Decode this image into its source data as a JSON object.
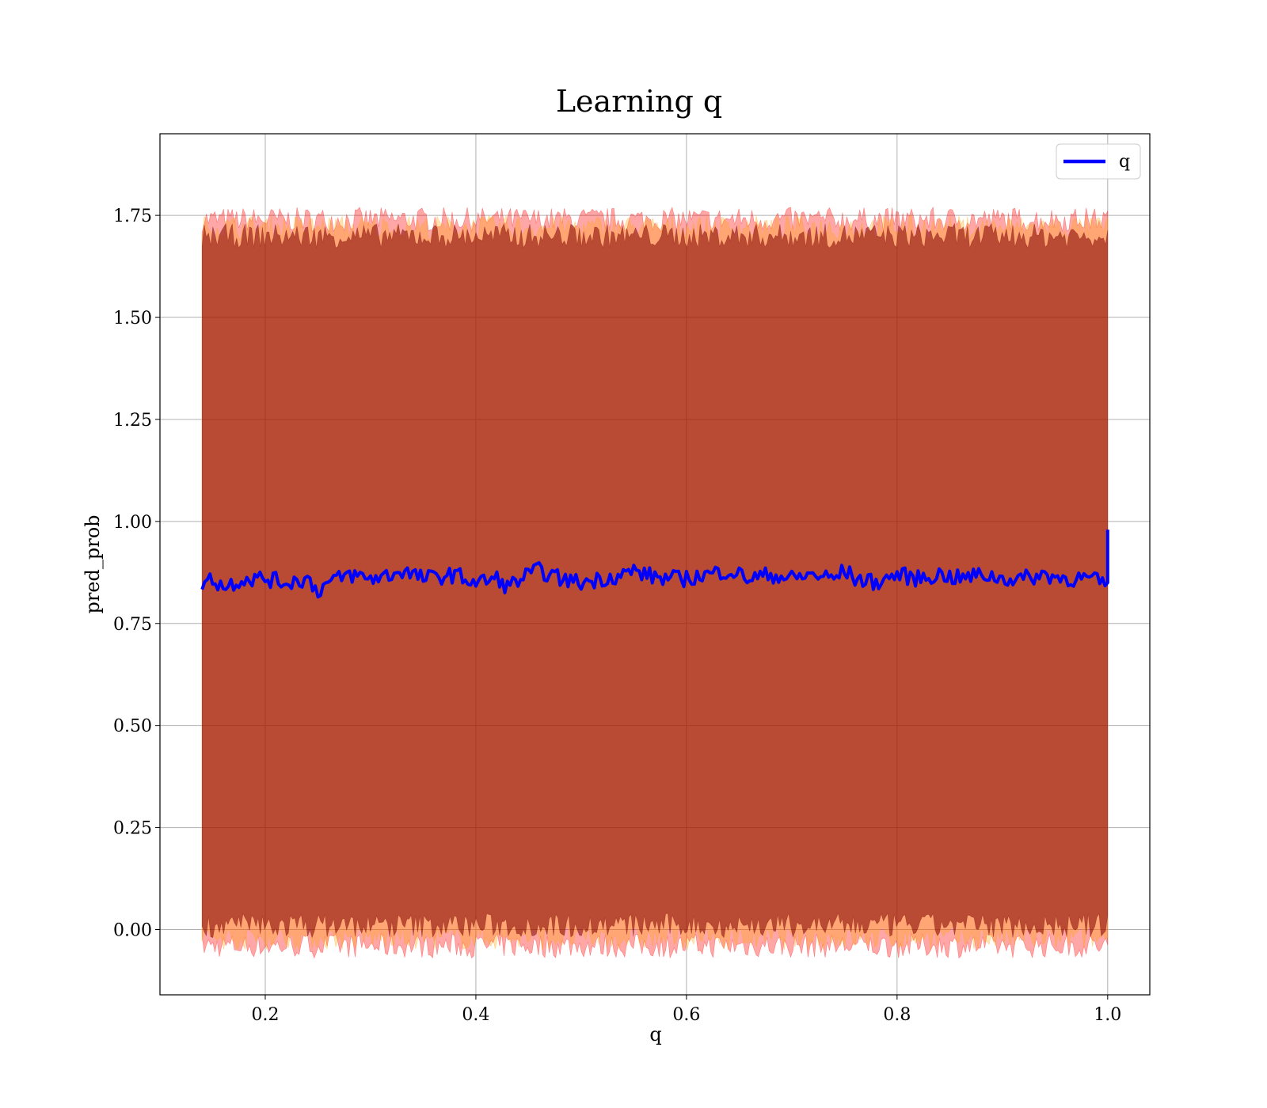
{
  "chart_data": {
    "type": "line",
    "title": "Learning q",
    "xlabel": "q",
    "ylabel": "pred_prob",
    "xlim": [
      0.1,
      1.04
    ],
    "ylim": [
      -0.16,
      1.95
    ],
    "xticks": [
      0.2,
      0.4,
      0.6,
      0.8,
      1.0
    ],
    "xtick_labels": [
      "0.2",
      "0.4",
      "0.6",
      "0.8",
      "1.0"
    ],
    "yticks": [
      0.0,
      0.25,
      0.5,
      0.75,
      1.0,
      1.25,
      1.5,
      1.75
    ],
    "ytick_labels": [
      "0.00",
      "0.25",
      "0.50",
      "0.75",
      "1.00",
      "1.25",
      "1.50",
      "1.75"
    ],
    "grid": true,
    "legend_position": "top-right",
    "series": [
      {
        "name": "q",
        "color": "#0000ff",
        "x": [
          0.14,
          0.15,
          0.16,
          0.17,
          0.18,
          0.2,
          0.22,
          0.24,
          0.25,
          0.26,
          0.28,
          0.3,
          0.32,
          0.33,
          0.35,
          0.38,
          0.4,
          0.42,
          0.43,
          0.45,
          0.46,
          0.48,
          0.5,
          0.52,
          0.54,
          0.55,
          0.56,
          0.58,
          0.6,
          0.62,
          0.64,
          0.66,
          0.68,
          0.7,
          0.72,
          0.74,
          0.75,
          0.76,
          0.78,
          0.8,
          0.82,
          0.84,
          0.86,
          0.88,
          0.9,
          0.92,
          0.94,
          0.96,
          0.98,
          0.995,
          1.0,
          1.0
        ],
        "values": [
          0.85,
          0.86,
          0.84,
          0.85,
          0.86,
          0.86,
          0.85,
          0.86,
          0.83,
          0.85,
          0.87,
          0.86,
          0.87,
          0.88,
          0.86,
          0.87,
          0.85,
          0.86,
          0.84,
          0.87,
          0.88,
          0.86,
          0.85,
          0.86,
          0.87,
          0.88,
          0.87,
          0.86,
          0.86,
          0.87,
          0.88,
          0.86,
          0.87,
          0.86,
          0.87,
          0.86,
          0.88,
          0.86,
          0.85,
          0.87,
          0.86,
          0.87,
          0.86,
          0.87,
          0.86,
          0.86,
          0.87,
          0.86,
          0.86,
          0.85,
          0.85,
          0.98
        ]
      }
    ],
    "bands": [
      {
        "color": "#ff0000",
        "opacity": 0.35,
        "lower": -0.04,
        "upper": 1.74,
        "xrange": [
          0.14,
          1.0
        ]
      },
      {
        "color": "#ffa500",
        "opacity": 0.3,
        "lower": -0.02,
        "upper": 1.72,
        "xrange": [
          0.14,
          1.0
        ]
      },
      {
        "color": "#800000",
        "opacity": 0.55,
        "lower": 0.01,
        "upper": 1.7,
        "xrange": [
          0.14,
          1.0
        ]
      }
    ]
  }
}
